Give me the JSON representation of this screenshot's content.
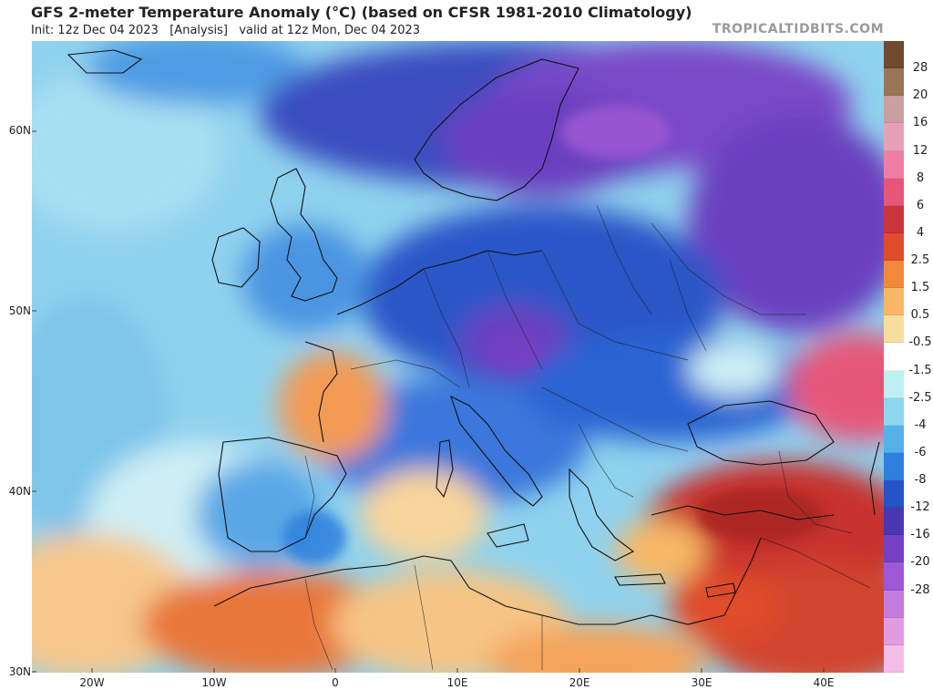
{
  "header": {
    "title": "GFS 2-meter Temperature Anomaly (°C) (based on CFSR 1981-2010 Climatology)",
    "subtitle": "Init: 12z Dec 04 2023   [Analysis]   valid at 12z Mon, Dec 04 2023",
    "credit": "TROPICALTIDBITS.COM"
  },
  "map": {
    "lat_labels": [
      "60N",
      "50N",
      "40N",
      "30N"
    ],
    "lon_labels": [
      "20W",
      "10W",
      "0",
      "10E",
      "20E",
      "30E",
      "40E"
    ],
    "region": "Europe, North Africa and Middle East"
  },
  "colorbar": {
    "labels": [
      "28",
      "20",
      "16",
      "12",
      "8",
      "6",
      "4",
      "2.5",
      "1.5",
      "0.5",
      "-0.5",
      "-1.5",
      "-2.5",
      "-4",
      "-6",
      "-8",
      "-12",
      "-16",
      "-20",
      "-28"
    ],
    "colors": [
      "#6e4a2e",
      "#9c7556",
      "#c99fa0",
      "#e7a1b7",
      "#f07ea3",
      "#e65679",
      "#c9353a",
      "#e04c2a",
      "#f08a3a",
      "#f7b766",
      "#f8dd9c",
      "#ffffff",
      "#bfeff0",
      "#8ed7ee",
      "#55b1ea",
      "#2f80de",
      "#2454c6",
      "#4b36b2",
      "#7441c4",
      "#9d58d3",
      "#c47ddd",
      "#e29be0",
      "#f2bde9"
    ]
  }
}
